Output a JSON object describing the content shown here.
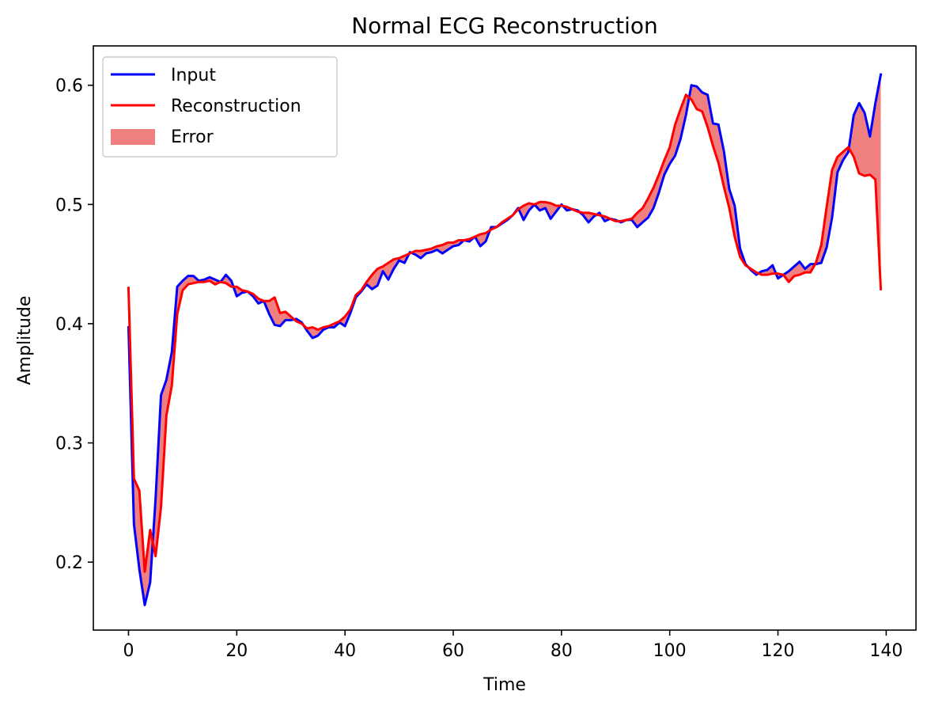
{
  "chart_data": {
    "type": "line",
    "title": "Normal ECG Reconstruction",
    "xlabel": "Time",
    "ylabel": "Amplitude",
    "xlim": [
      -6.5,
      145.5
    ],
    "ylim": [
      0.143,
      0.633
    ],
    "xticks": [
      0,
      20,
      40,
      60,
      80,
      100,
      120,
      140
    ],
    "yticks": [
      0.2,
      0.3,
      0.4,
      0.5,
      0.6
    ],
    "grid": false,
    "legend_position": "top-left",
    "legend": [
      {
        "label": "Input",
        "kind": "line",
        "color": "#0000ff"
      },
      {
        "label": "Reconstruction",
        "kind": "line",
        "color": "#ff0000"
      },
      {
        "label": "Error",
        "kind": "patch",
        "color": "#f08080"
      }
    ],
    "series": [
      {
        "name": "Input",
        "color": "#0000ff",
        "values": [
          0.397,
          0.232,
          0.194,
          0.164,
          0.183,
          0.253,
          0.34,
          0.353,
          0.376,
          0.431,
          0.436,
          0.44,
          0.44,
          0.436,
          0.437,
          0.439,
          0.437,
          0.435,
          0.441,
          0.436,
          0.423,
          0.426,
          0.427,
          0.423,
          0.417,
          0.419,
          0.408,
          0.399,
          0.398,
          0.403,
          0.403,
          0.404,
          0.401,
          0.394,
          0.388,
          0.39,
          0.395,
          0.397,
          0.397,
          0.401,
          0.398,
          0.409,
          0.422,
          0.427,
          0.433,
          0.429,
          0.432,
          0.444,
          0.437,
          0.446,
          0.453,
          0.451,
          0.46,
          0.458,
          0.455,
          0.459,
          0.46,
          0.462,
          0.459,
          0.462,
          0.465,
          0.466,
          0.47,
          0.469,
          0.473,
          0.465,
          0.469,
          0.481,
          0.481,
          0.484,
          0.487,
          0.491,
          0.497,
          0.487,
          0.495,
          0.5,
          0.495,
          0.497,
          0.488,
          0.494,
          0.5,
          0.495,
          0.496,
          0.495,
          0.491,
          0.485,
          0.49,
          0.493,
          0.486,
          0.488,
          0.487,
          0.485,
          0.487,
          0.487,
          0.481,
          0.485,
          0.489,
          0.497,
          0.51,
          0.525,
          0.534,
          0.541,
          0.555,
          0.575,
          0.6,
          0.599,
          0.594,
          0.592,
          0.568,
          0.567,
          0.545,
          0.513,
          0.499,
          0.463,
          0.45,
          0.445,
          0.441,
          0.444,
          0.445,
          0.449,
          0.438,
          0.441,
          0.444,
          0.448,
          0.452,
          0.446,
          0.45,
          0.45,
          0.451,
          0.464,
          0.489,
          0.527,
          0.537,
          0.544,
          0.575,
          0.585,
          0.577,
          0.557,
          0.585,
          0.609
        ]
      },
      {
        "name": "Reconstruction",
        "color": "#ff0000",
        "values": [
          0.43,
          0.27,
          0.26,
          0.192,
          0.227,
          0.205,
          0.246,
          0.323,
          0.348,
          0.408,
          0.428,
          0.433,
          0.434,
          0.435,
          0.435,
          0.436,
          0.433,
          0.435,
          0.434,
          0.431,
          0.431,
          0.428,
          0.427,
          0.425,
          0.421,
          0.419,
          0.419,
          0.422,
          0.409,
          0.41,
          0.406,
          0.402,
          0.4,
          0.396,
          0.397,
          0.395,
          0.397,
          0.398,
          0.4,
          0.402,
          0.406,
          0.412,
          0.424,
          0.428,
          0.435,
          0.441,
          0.446,
          0.448,
          0.451,
          0.454,
          0.455,
          0.457,
          0.459,
          0.461,
          0.461,
          0.462,
          0.463,
          0.465,
          0.466,
          0.468,
          0.468,
          0.47,
          0.47,
          0.471,
          0.473,
          0.475,
          0.476,
          0.479,
          0.481,
          0.485,
          0.488,
          0.491,
          0.496,
          0.499,
          0.501,
          0.5,
          0.502,
          0.502,
          0.501,
          0.499,
          0.499,
          0.498,
          0.496,
          0.494,
          0.493,
          0.493,
          0.492,
          0.491,
          0.49,
          0.488,
          0.486,
          0.486,
          0.487,
          0.488,
          0.493,
          0.497,
          0.505,
          0.514,
          0.525,
          0.537,
          0.548,
          0.567,
          0.58,
          0.592,
          0.588,
          0.58,
          0.578,
          0.565,
          0.549,
          0.535,
          0.515,
          0.497,
          0.473,
          0.456,
          0.449,
          0.446,
          0.443,
          0.441,
          0.441,
          0.442,
          0.442,
          0.441,
          0.435,
          0.44,
          0.441,
          0.443,
          0.443,
          0.451,
          0.466,
          0.498,
          0.529,
          0.54,
          0.544,
          0.548,
          0.54,
          0.526,
          0.524,
          0.525,
          0.521,
          0.429
        ]
      }
    ]
  }
}
